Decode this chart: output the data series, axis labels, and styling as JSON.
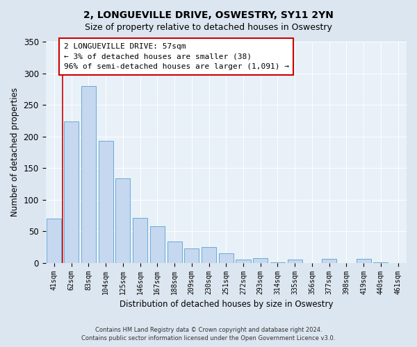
{
  "title": "2, LONGUEVILLE DRIVE, OSWESTRY, SY11 2YN",
  "subtitle": "Size of property relative to detached houses in Oswestry",
  "xlabel": "Distribution of detached houses by size in Oswestry",
  "ylabel": "Number of detached properties",
  "bar_labels": [
    "41sqm",
    "62sqm",
    "83sqm",
    "104sqm",
    "125sqm",
    "146sqm",
    "167sqm",
    "188sqm",
    "209sqm",
    "230sqm",
    "251sqm",
    "272sqm",
    "293sqm",
    "314sqm",
    "335sqm",
    "356sqm",
    "377sqm",
    "398sqm",
    "419sqm",
    "440sqm",
    "461sqm"
  ],
  "bar_values": [
    70,
    224,
    280,
    193,
    134,
    71,
    58,
    34,
    23,
    25,
    15,
    5,
    7,
    1,
    5,
    0,
    6,
    0,
    6,
    1,
    0
  ],
  "bar_color": "#c5d8f0",
  "bar_edge_color": "#6aaad4",
  "marker_line_color": "#cc0000",
  "ylim": [
    0,
    350
  ],
  "yticks": [
    0,
    50,
    100,
    150,
    200,
    250,
    300,
    350
  ],
  "annotation_text": "2 LONGUEVILLE DRIVE: 57sqm\n← 3% of detached houses are smaller (38)\n96% of semi-detached houses are larger (1,091) →",
  "annotation_box_color": "#ffffff",
  "annotation_box_edge": "#cc0000",
  "footer_line1": "Contains HM Land Registry data © Crown copyright and database right 2024.",
  "footer_line2": "Contains public sector information licensed under the Open Government Licence v3.0.",
  "bg_color": "#dce6f0",
  "plot_bg_color": "#e8f0f8"
}
